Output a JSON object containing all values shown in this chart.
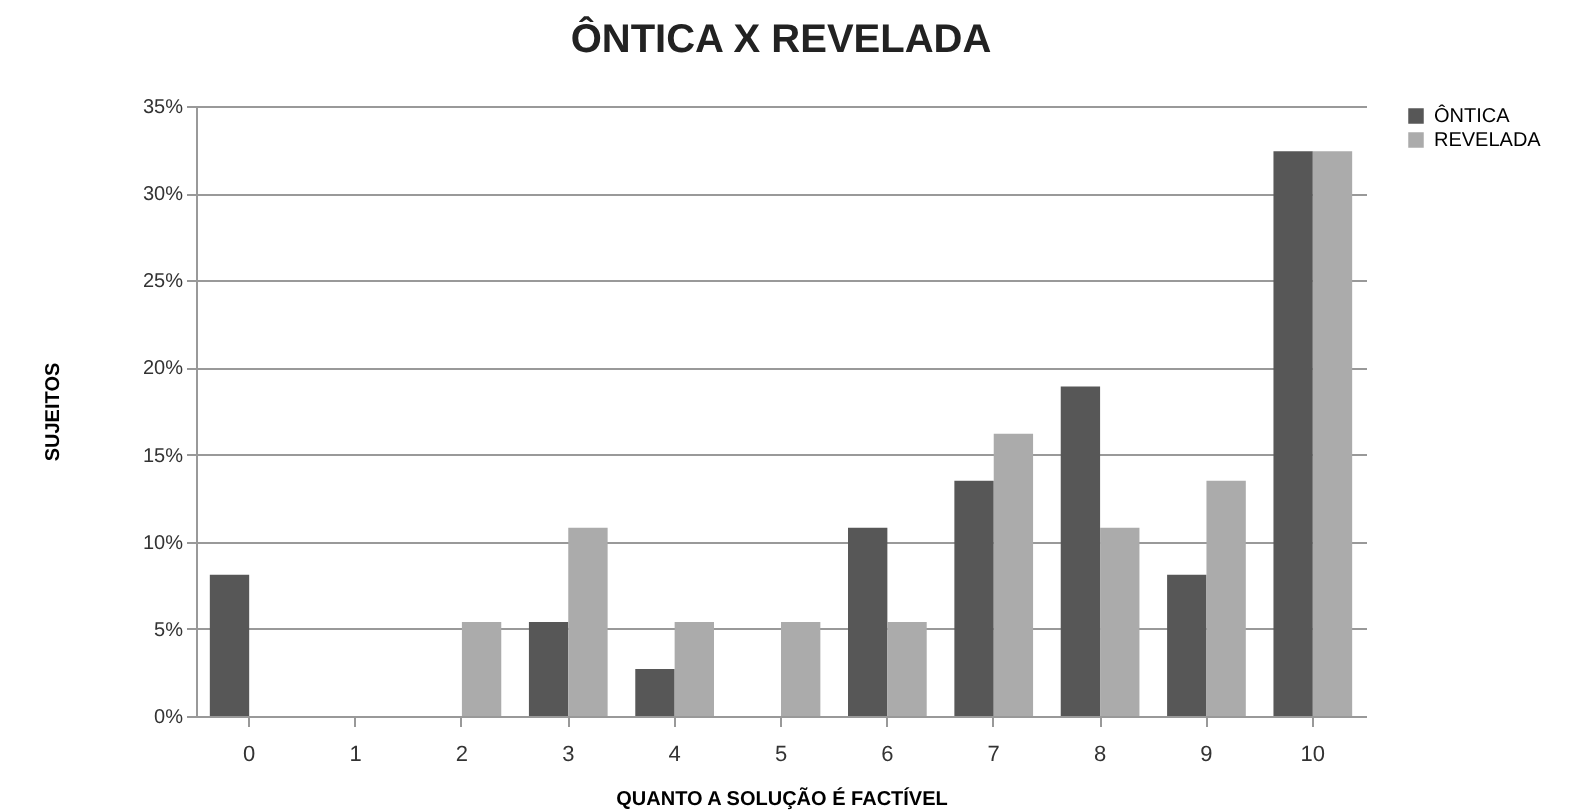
{
  "chart_data": {
    "type": "bar",
    "title": "ÔNTICA X REVELADA",
    "xlabel": "QUANTO A SOLUÇÃO É FACTÍVEL",
    "ylabel": "SUJEITOS",
    "categories": [
      "0",
      "1",
      "2",
      "3",
      "4",
      "5",
      "6",
      "7",
      "8",
      "9",
      "10"
    ],
    "series": [
      {
        "name": "ÔNTICA",
        "color": "#575757",
        "values": [
          8.1,
          0,
          0,
          5.4,
          2.7,
          0,
          10.8,
          13.5,
          18.9,
          8.1,
          32.4
        ]
      },
      {
        "name": "REVELADA",
        "color": "#ababab",
        "values": [
          0,
          0,
          5.4,
          10.8,
          5.4,
          5.4,
          5.4,
          16.2,
          10.8,
          13.5,
          32.4
        ]
      }
    ],
    "ylim": [
      0,
      35
    ],
    "yticks": [
      {
        "value": 0,
        "label": "0%"
      },
      {
        "value": 5,
        "label": "5%"
      },
      {
        "value": 10,
        "label": "10%"
      },
      {
        "value": 15,
        "label": "15%"
      },
      {
        "value": 20,
        "label": "20%"
      },
      {
        "value": 25,
        "label": "25%"
      },
      {
        "value": 30,
        "label": "30%"
      },
      {
        "value": 35,
        "label": "35%"
      }
    ],
    "grid": "y",
    "legend": "right"
  }
}
